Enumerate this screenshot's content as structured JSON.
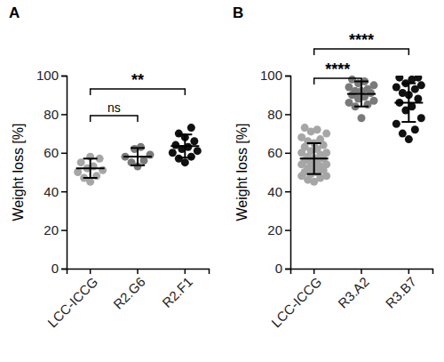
{
  "chart_data": [
    {
      "type": "scatter",
      "title": "A",
      "y_label": "Weight loss [%]",
      "categories": [
        "LCC-ICCG",
        "R2.G6",
        "R2.F1"
      ],
      "colors": [
        "#a6a6a6",
        "#7a7a7a",
        "#111111"
      ],
      "points": [
        [
          45,
          47,
          48,
          50,
          51,
          52,
          53,
          55,
          57,
          58
        ],
        [
          53,
          55,
          56,
          58,
          59,
          62,
          63
        ],
        [
          55,
          57,
          58,
          60,
          61,
          62,
          63,
          64,
          66,
          68,
          70,
          73
        ]
      ],
      "mean": [
        52,
        58,
        63.5
      ],
      "error": [
        5,
        4.5,
        6
      ],
      "ylim": [
        0,
        100
      ],
      "yticks": [
        0,
        20,
        40,
        60,
        80,
        100
      ],
      "annotations": [
        {
          "from": 0,
          "to": 1,
          "label": "ns"
        },
        {
          "from": 0,
          "to": 2,
          "label": "**"
        }
      ]
    },
    {
      "type": "scatter",
      "title": "B",
      "y_label": "Weight loss [%]",
      "categories": [
        "LCC-ICCG",
        "R3.A2",
        "R3.B7"
      ],
      "colors": [
        "#a6a6a6",
        "#7a7a7a",
        "#111111"
      ],
      "points": [
        [
          45,
          46,
          47,
          48,
          48,
          49,
          50,
          50,
          51,
          52,
          52,
          53,
          54,
          54,
          55,
          55,
          56,
          57,
          57,
          58,
          59,
          60,
          60,
          61,
          62,
          63,
          64,
          65,
          66,
          67,
          68,
          70,
          71,
          72,
          73
        ],
        [
          78,
          84,
          85,
          86,
          87,
          88,
          89,
          90,
          91,
          92,
          92,
          93,
          94,
          95,
          96,
          97,
          98
        ],
        [
          67,
          70,
          72,
          75,
          78,
          82,
          84,
          86,
          88,
          90,
          91,
          93,
          94,
          95,
          96,
          98,
          99,
          99
        ]
      ],
      "mean": [
        57,
        90.5,
        86
      ],
      "error": [
        8,
        6.5,
        10
      ],
      "ylim": [
        0,
        100
      ],
      "yticks": [
        0,
        20,
        40,
        60,
        80,
        100
      ],
      "annotations": [
        {
          "from": 0,
          "to": 1,
          "label": "****"
        },
        {
          "from": 0,
          "to": 2,
          "label": "****"
        }
      ]
    }
  ]
}
